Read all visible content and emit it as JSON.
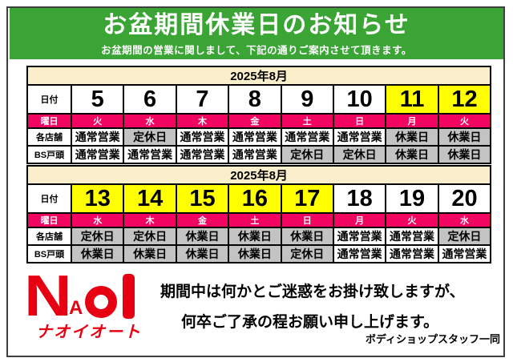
{
  "header": {
    "title": "お盆期間休業日のお知らせ",
    "subtitle": "お盆期間の営業に関しまして、下記の通りご案内させて頂きます。"
  },
  "row_labels": {
    "date": "日付",
    "weekday": "曜日",
    "stores": "各店舗",
    "bs_togashira": "BS戸頭"
  },
  "legend": {
    "open": "通常営業",
    "regular_holiday": "定休日",
    "closed": "休業日"
  },
  "tables": [
    {
      "month": "2025年8月",
      "dates": [
        "5",
        "6",
        "7",
        "8",
        "9",
        "10",
        "11",
        "12"
      ],
      "highlighted": [
        false,
        false,
        false,
        false,
        false,
        false,
        true,
        true
      ],
      "weekdays": [
        "火",
        "水",
        "木",
        "金",
        "土",
        "日",
        "月",
        "火"
      ],
      "stores_status": [
        "通常営業",
        "定休日",
        "通常営業",
        "通常営業",
        "通常営業",
        "通常営業",
        "休業日",
        "休業日"
      ],
      "bs_status": [
        "通常営業",
        "通常営業",
        "通常営業",
        "通常営業",
        "定休日",
        "定休日",
        "休業日",
        "休業日"
      ]
    },
    {
      "month": "2025年8月",
      "dates": [
        "13",
        "14",
        "15",
        "16",
        "17",
        "18",
        "19",
        "20"
      ],
      "highlighted": [
        true,
        true,
        true,
        true,
        true,
        false,
        false,
        false
      ],
      "weekdays": [
        "水",
        "木",
        "金",
        "土",
        "日",
        "月",
        "火",
        "水"
      ],
      "stores_status": [
        "定休日",
        "定休日",
        "休業日",
        "休業日",
        "休業日",
        "通常営業",
        "通常営業",
        "定休日"
      ],
      "bs_status": [
        "休業日",
        "休業日",
        "休業日",
        "休業日",
        "定休日",
        "通常営業",
        "通常営業",
        "通常営業"
      ]
    }
  ],
  "logo": {
    "letter_n": "N",
    "letter_a": "A",
    "letter_o": "o",
    "letter_i": "I",
    "katakana": "ナオイオート"
  },
  "message": {
    "line1": "期間中は何かとご迷惑をお掛け致しますが、",
    "line2": "何卒ご了承の程お願い申し上げます。",
    "signoff": "ボディショップスタッフ一同"
  },
  "colors": {
    "green": "#3aa435",
    "pink": "#f20560",
    "yellow": "#ffff00",
    "gray": "#c3c3c3",
    "cream": "#faeecb",
    "red": "#e60012",
    "border_dark": "#3f3f3f"
  }
}
